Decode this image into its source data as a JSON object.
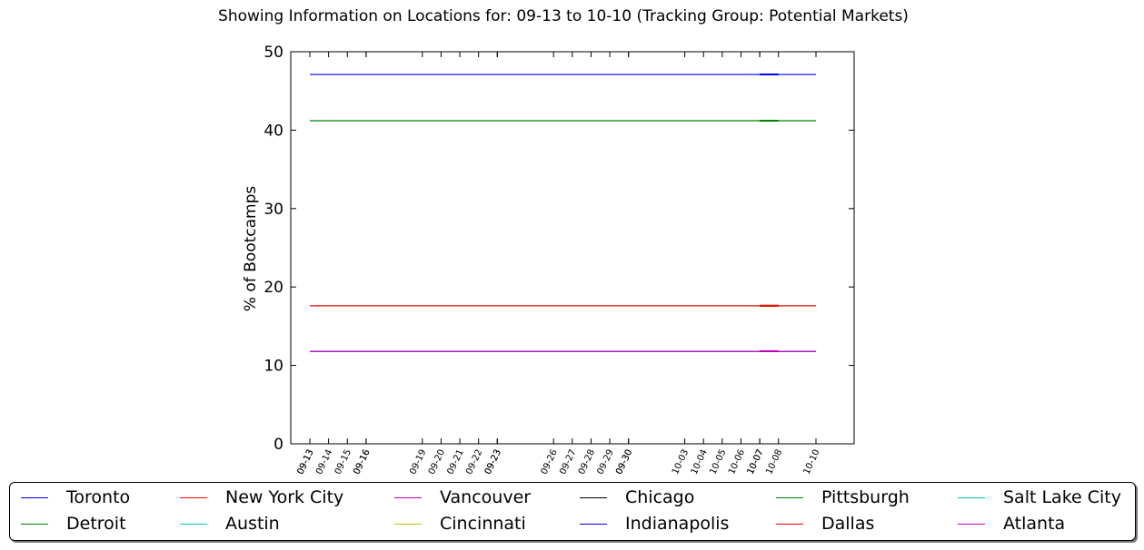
{
  "chart_data": {
    "type": "line",
    "title": "Showing Information on Locations for: 09-13 to 10-10 (Tracking Group: Potential Markets)",
    "ylabel": "% of Bootcamps",
    "xlabel": "",
    "ylim": [
      0,
      50
    ],
    "yticks": [
      0,
      10,
      20,
      30,
      40,
      50
    ],
    "grid": false,
    "legend_position": "bottom",
    "x": [
      "09-13",
      "09-13",
      "09-14",
      "09-15",
      "09-16",
      "09-16",
      "09-19",
      "09-20",
      "09-21",
      "09-22",
      "09-23",
      "09-23",
      "09-26",
      "09-27",
      "09-28",
      "09-29",
      "09-30",
      "09-30",
      "10-03",
      "10-04",
      "10-05",
      "10-06",
      "10-07",
      "10-07",
      "10-08",
      "10-10"
    ],
    "series": [
      {
        "name": "Toronto",
        "color": "#0000ff",
        "value": 47.1
      },
      {
        "name": "Detroit",
        "color": "#008000",
        "value": 41.2
      },
      {
        "name": "New York City",
        "color": "#ff0000",
        "value": 11.8
      },
      {
        "name": "Austin",
        "color": "#00bfbf",
        "value": 17.6
      },
      {
        "name": "Vancouver",
        "color": "#bf00bf",
        "value": 11.8
      },
      {
        "name": "Cincinnati",
        "color": "#bfbf00",
        "value": 17.6
      },
      {
        "name": "Chicago",
        "color": "#000000",
        "value": 11.8
      },
      {
        "name": "Indianapolis",
        "color": "#0000ff",
        "value": 11.8
      },
      {
        "name": "Pittsburgh",
        "color": "#008000",
        "value": 17.6
      },
      {
        "name": "Dallas",
        "color": "#ff0000",
        "value": 17.6
      },
      {
        "name": "Salt Lake City",
        "color": "#00bfbf",
        "value": 11.8
      },
      {
        "name": "Atlanta",
        "color": "#bf00bf",
        "value": 11.8
      }
    ]
  }
}
